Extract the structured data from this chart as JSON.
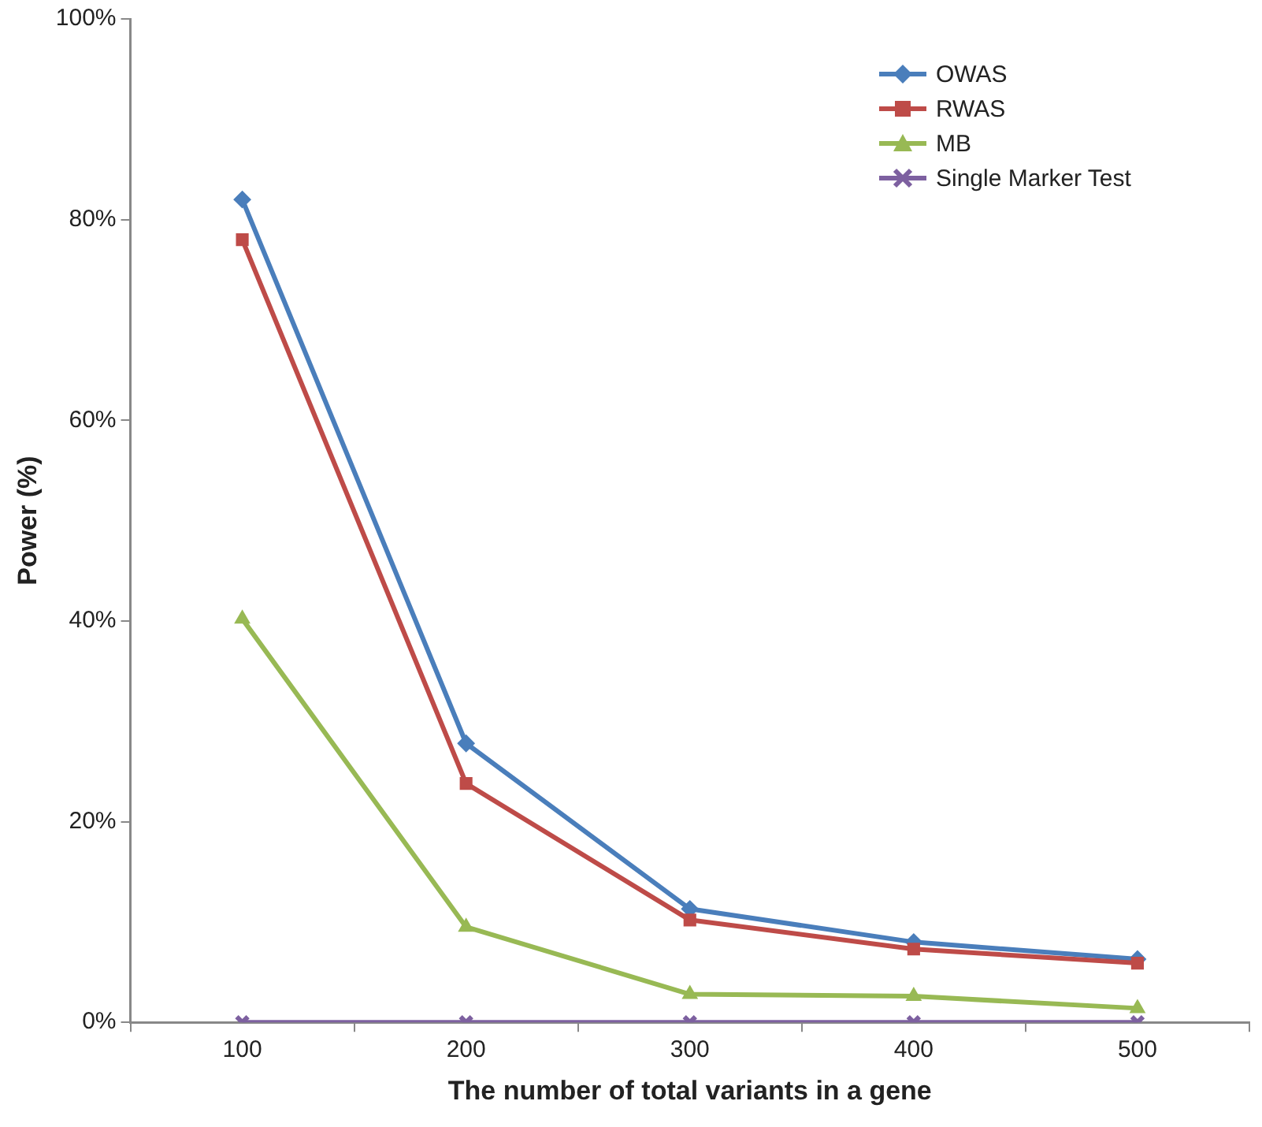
{
  "chart_data": {
    "type": "line",
    "xlabel": "The number of total variants in a gene",
    "ylabel": "Power (%)",
    "categories": [
      "100",
      "200",
      "300",
      "400",
      "500"
    ],
    "ylim": [
      0,
      100
    ],
    "yticks": [
      {
        "value": 0,
        "label": "0%"
      },
      {
        "value": 20,
        "label": "20%"
      },
      {
        "value": 40,
        "label": "40%"
      },
      {
        "value": 60,
        "label": "60%"
      },
      {
        "value": 80,
        "label": "80%"
      },
      {
        "value": 100,
        "label": "100%"
      }
    ],
    "grid": false,
    "legend": "top right",
    "line_style": "solid",
    "series": [
      {
        "name": "OWAS",
        "color": "#4a7ebb",
        "marker": "diamond",
        "values": [
          82.0,
          27.8,
          11.3,
          8.0,
          6.3
        ]
      },
      {
        "name": "RWAS",
        "color": "#be4b48",
        "marker": "square",
        "values": [
          78.0,
          23.8,
          10.2,
          7.3,
          5.9
        ]
      },
      {
        "name": "MB",
        "color": "#98b954",
        "marker": "triangle",
        "values": [
          40.2,
          9.5,
          2.8,
          2.6,
          1.4
        ]
      },
      {
        "name": "Single Marker Test",
        "color": "#7d60a0",
        "marker": "cross",
        "values": [
          0,
          0,
          0,
          0,
          0
        ]
      }
    ]
  }
}
